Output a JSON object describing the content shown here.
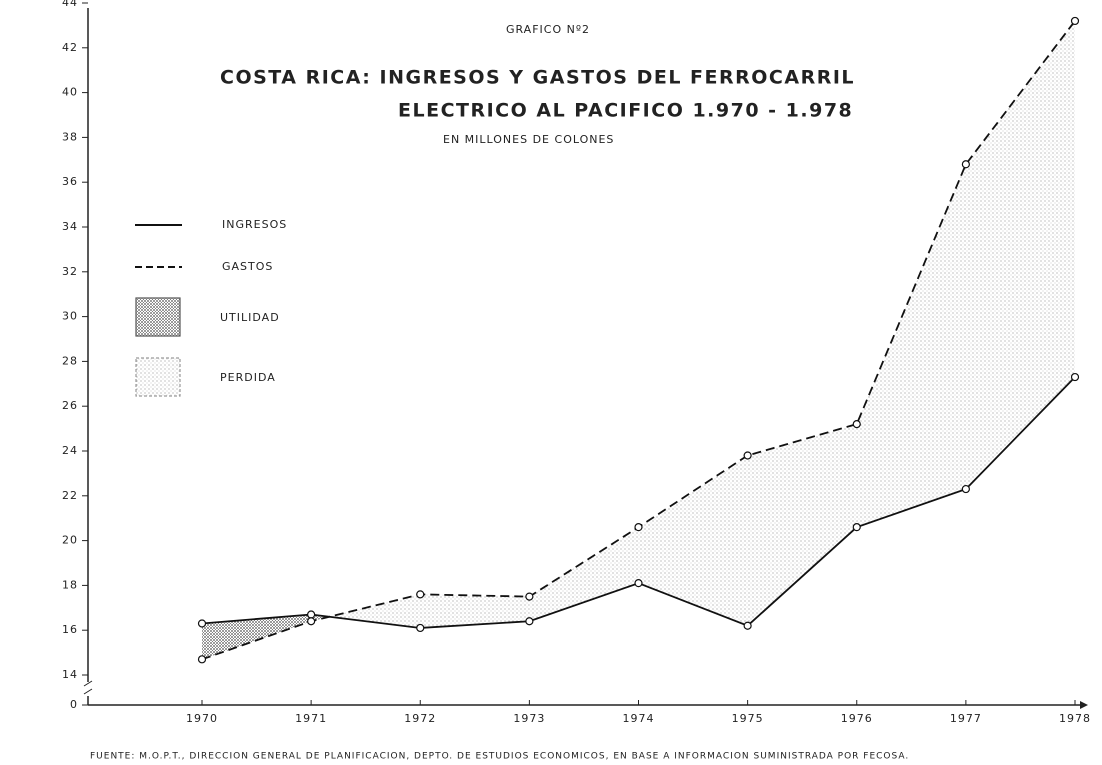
{
  "chart_data": {
    "type": "line",
    "figure_label": "GRAFICO Nº2",
    "title": [
      "COSTA RICA: INGRESOS Y GASTOS DEL FERROCARRIL",
      "ELECTRICO AL PACIFICO 1.970 - 1.978"
    ],
    "subtitle": "EN MILLONES DE COLONES",
    "source": "FUENTE: M.O.P.T., DIRECCION GENERAL DE PLANIFICACION, DEPTO. DE ESTUDIOS ECONOMICOS, EN BASE A INFORMACION SUMINISTRADA POR FECOSA.",
    "categories": [
      "1970",
      "1971",
      "1972",
      "1973",
      "1974",
      "1975",
      "1976",
      "1977",
      "1978"
    ],
    "series": [
      {
        "name": "INGRESOS",
        "color": "#111111",
        "dash": false,
        "values": [
          16.3,
          16.7,
          16.1,
          16.4,
          18.1,
          16.2,
          20.6,
          22.3,
          27.3
        ]
      },
      {
        "name": "GASTOS",
        "color": "#111111",
        "dash": true,
        "values": [
          14.7,
          16.4,
          17.6,
          17.5,
          20.6,
          23.8,
          25.2,
          36.8,
          43.2
        ]
      }
    ],
    "areas": [
      {
        "name": "UTILIDAD",
        "color": "#555555"
      },
      {
        "name": "PERDIDA",
        "color": "#9a9a9a"
      }
    ],
    "ylim": [
      14,
      44
    ],
    "yticks": [
      0,
      14,
      16,
      18,
      20,
      22,
      24,
      26,
      28,
      30,
      32,
      34,
      36,
      38,
      40,
      42,
      44
    ],
    "axis_break": true
  }
}
